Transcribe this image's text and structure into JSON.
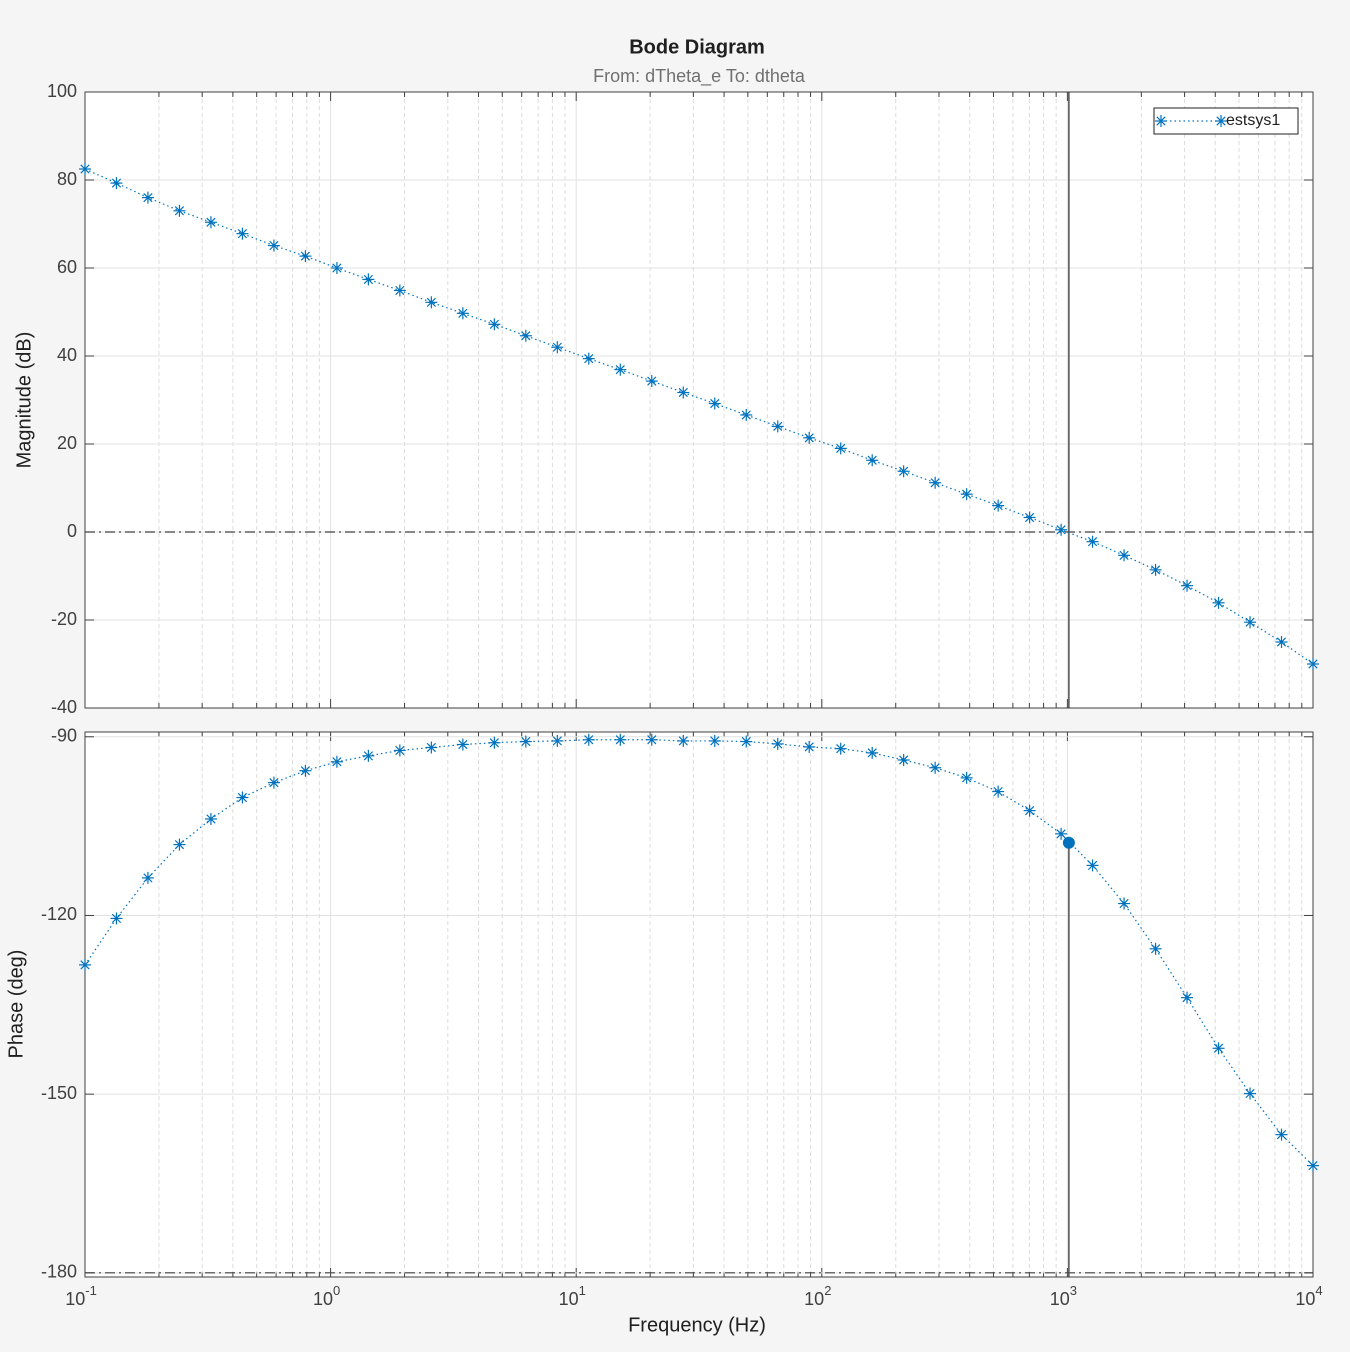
{
  "chart_data": [
    {
      "type": "line",
      "title": "Bode Diagram",
      "subtitle": "From: dTheta_e  To: dtheta",
      "ylabel": "Magnitude (dB)",
      "x": [
        0.1,
        0.1343,
        0.1804,
        0.2424,
        0.3257,
        0.4375,
        0.5878,
        0.7897,
        1.061,
        1.425,
        1.914,
        2.572,
        3.455,
        4.642,
        6.236,
        8.377,
        11.25,
        15.12,
        20.31,
        27.29,
        36.66,
        49.25,
        66.16,
        88.86,
        119.4,
        160.4,
        215.4,
        289.4,
        388.8,
        522.4,
        701.7,
        942.7,
        1266,
        1701,
        2286,
        3070,
        4125,
        5541,
        7444,
        10000
      ],
      "series": [
        {
          "name": "estsys1",
          "color": "#0072bd",
          "values": [
            82.5,
            79.3,
            76,
            73,
            70.4,
            67.8,
            65.1,
            62.7,
            60,
            57.4,
            54.9,
            52.2,
            49.7,
            47.2,
            44.6,
            42,
            39.4,
            36.9,
            34.3,
            31.7,
            29.2,
            26.6,
            24,
            21.4,
            19,
            16.3,
            13.8,
            11.2,
            8.6,
            6,
            3.3,
            0.5,
            -2.2,
            -5.3,
            -8.6,
            -12.2,
            -16.1,
            -20.5,
            -25,
            -30
          ]
        }
      ],
      "xlim": [
        0.1,
        10000
      ],
      "log_x": true,
      "ylim": [
        -40,
        100
      ],
      "yticks": [
        -40,
        -20,
        0,
        20,
        40,
        60,
        80,
        100
      ],
      "grid": true,
      "legend": "northeast",
      "reference_y": 0
    },
    {
      "type": "line",
      "xlabel": "Frequency  (Hz)",
      "ylabel": "Phase (deg)",
      "x": [
        0.1,
        0.1343,
        0.1804,
        0.2424,
        0.3257,
        0.4375,
        0.5878,
        0.7897,
        1.061,
        1.425,
        1.914,
        2.572,
        3.455,
        4.642,
        6.236,
        8.377,
        11.25,
        15.12,
        20.31,
        27.29,
        36.66,
        49.25,
        66.16,
        88.86,
        119.4,
        160.4,
        215.4,
        289.4,
        388.8,
        522.4,
        701.7,
        942.7,
        1266,
        1701,
        2286,
        3070,
        4125,
        5541,
        7444,
        10000
      ],
      "series": [
        {
          "color": "#0072bd",
          "values": [
            -128.3,
            -120.5,
            -113.7,
            -108.1,
            -103.8,
            -100.2,
            -97.7,
            -95.7,
            -94.2,
            -93.2,
            -92.3,
            -91.8,
            -91.3,
            -91,
            -90.8,
            -90.7,
            -90.5,
            -90.5,
            -90.5,
            -90.7,
            -90.7,
            -90.8,
            -91.2,
            -91.7,
            -92,
            -92.7,
            -93.9,
            -95.2,
            -96.9,
            -99.2,
            -102.4,
            -106.3,
            -111.6,
            -118,
            -125.6,
            -133.8,
            -142.3,
            -149.9,
            -156.8,
            -162
          ]
        }
      ],
      "xlim": [
        0.1,
        10000
      ],
      "log_x": true,
      "xticks": [
        {
          "value": 0.1,
          "label": "10",
          "exponent": "-1"
        },
        {
          "value": 1,
          "label": "10",
          "exponent": "0"
        },
        {
          "value": 10,
          "label": "10",
          "exponent": "1"
        },
        {
          "value": 100,
          "label": "10",
          "exponent": "2"
        },
        {
          "value": 1000,
          "label": "10",
          "exponent": "3"
        },
        {
          "value": 10000,
          "label": "10",
          "exponent": "4"
        }
      ],
      "ylim": [
        -180.7,
        -89.2
      ],
      "yticks": [
        -180,
        -150,
        -120,
        -90
      ],
      "grid": true,
      "reference_y": -180,
      "datatip": {
        "x": 1014,
        "y": -107.8
      }
    }
  ]
}
